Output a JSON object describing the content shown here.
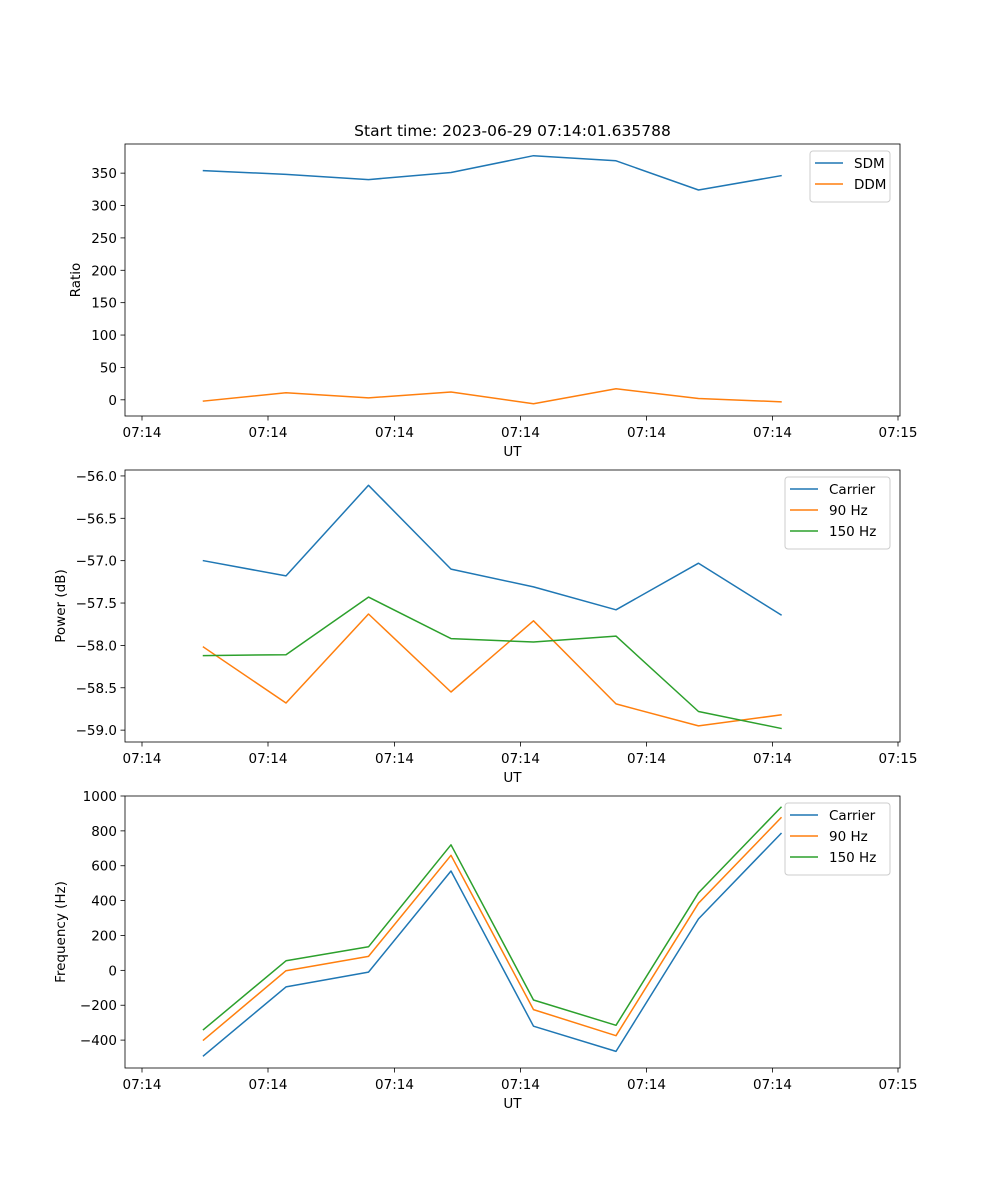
{
  "figure": {
    "title": "Start time: 2023-06-29 07:14:01.635788"
  },
  "chart_data": [
    {
      "type": "line",
      "title": "Start time: 2023-06-29 07:14:01.635788",
      "xlabel": "UT",
      "ylabel": "Ratio",
      "x_tick_labels": [
        "07:14",
        "07:14",
        "07:14",
        "07:14",
        "07:14",
        "07:14",
        "07:15"
      ],
      "y_ticks": [
        0,
        50,
        100,
        150,
        200,
        250,
        300,
        350
      ],
      "ylim": [
        -25,
        395
      ],
      "grid": false,
      "legend_position": "top-right",
      "series": [
        {
          "name": "SDM",
          "color": "#1f77b4",
          "values": [
            354,
            348,
            340,
            351,
            377,
            369,
            324,
            346
          ]
        },
        {
          "name": "DDM",
          "color": "#ff7f0e",
          "values": [
            -2,
            11,
            3,
            12,
            -6,
            17,
            2,
            -3
          ]
        }
      ]
    },
    {
      "type": "line",
      "xlabel": "UT",
      "ylabel": "Power (dB)",
      "x_tick_labels": [
        "07:14",
        "07:14",
        "07:14",
        "07:14",
        "07:14",
        "07:14",
        "07:15"
      ],
      "y_ticks": [
        -59.0,
        -58.5,
        -58.0,
        -57.5,
        -57.0,
        -56.5,
        -56.0
      ],
      "ylim": [
        -59.14,
        -55.93
      ],
      "grid": false,
      "legend_position": "top-right",
      "series": [
        {
          "name": "Carrier",
          "color": "#1f77b4",
          "values": [
            -57.0,
            -57.18,
            -56.11,
            -57.1,
            -57.31,
            -57.58,
            -57.03,
            -57.64
          ]
        },
        {
          "name": "90 Hz",
          "color": "#ff7f0e",
          "values": [
            -58.02,
            -58.68,
            -57.63,
            -58.55,
            -57.71,
            -58.69,
            -58.95,
            -58.82
          ]
        },
        {
          "name": "150 Hz",
          "color": "#2ca02c",
          "values": [
            -58.12,
            -58.11,
            -57.43,
            -57.92,
            -57.96,
            -57.89,
            -58.78,
            -58.98
          ]
        }
      ]
    },
    {
      "type": "line",
      "xlabel": "UT",
      "ylabel": "Frequency (Hz)",
      "x_tick_labels": [
        "07:14",
        "07:14",
        "07:14",
        "07:14",
        "07:14",
        "07:14",
        "07:15"
      ],
      "y_ticks": [
        -400,
        -200,
        0,
        200,
        400,
        600,
        800,
        1000
      ],
      "ylim": [
        -560,
        1000
      ],
      "grid": false,
      "legend_position": "top-right",
      "series": [
        {
          "name": "Carrier",
          "color": "#1f77b4",
          "values": [
            -490,
            -95,
            -10,
            570,
            -320,
            -465,
            295,
            785
          ]
        },
        {
          "name": "90 Hz",
          "color": "#ff7f0e",
          "values": [
            -400,
            -2,
            80,
            660,
            -225,
            -375,
            385,
            875
          ]
        },
        {
          "name": "150 Hz",
          "color": "#2ca02c",
          "values": [
            -340,
            55,
            135,
            720,
            -170,
            -315,
            445,
            935
          ]
        }
      ]
    }
  ]
}
